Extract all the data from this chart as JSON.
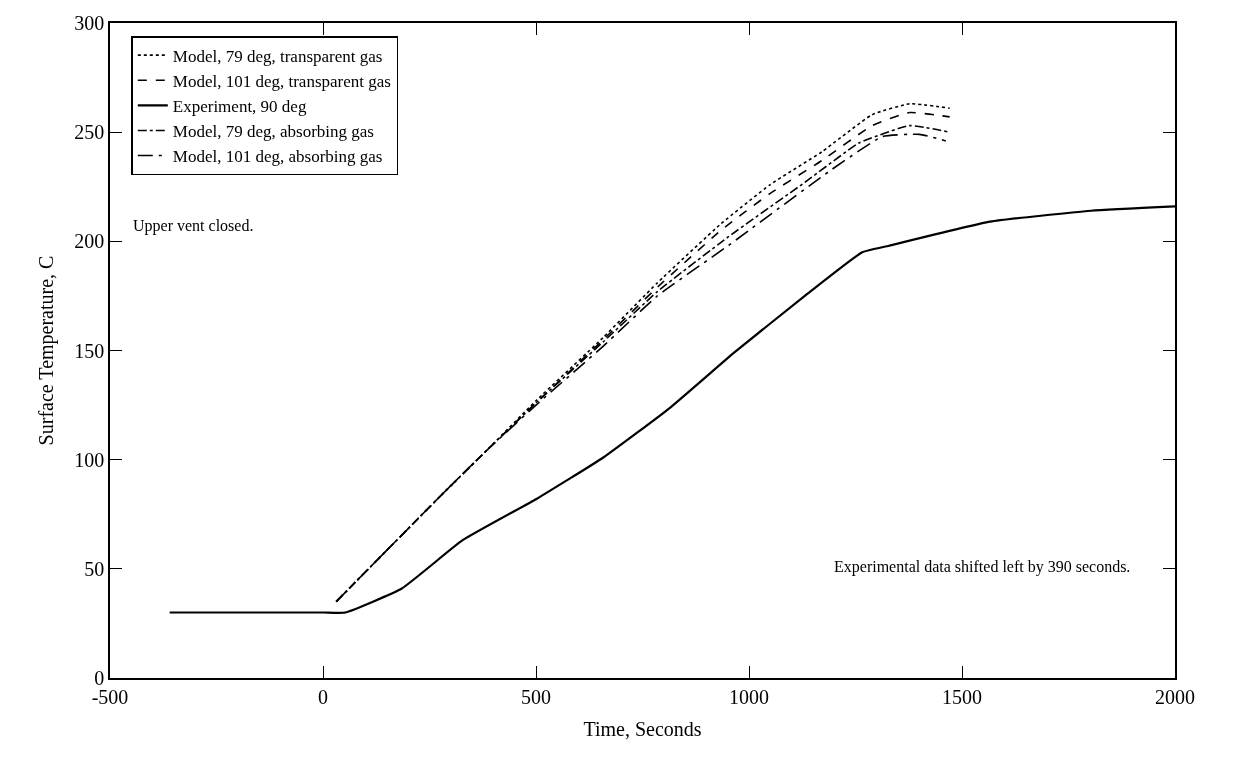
{
  "chart_data": {
    "type": "line",
    "xlabel": "Time, Seconds",
    "ylabel": "Surface Temperature, C",
    "xlim": [
      -500,
      2000
    ],
    "xticks": [
      -500,
      0,
      500,
      1000,
      1500,
      2000
    ],
    "ylim": [
      0,
      300
    ],
    "yticks": [
      0,
      50,
      100,
      150,
      200,
      250,
      300
    ],
    "legend": "top left",
    "annotations": [
      "Upper vent closed.",
      "Experimental data shifted left by 390 seconds."
    ],
    "series": [
      {
        "name": "Model, 79 deg, transparent gas",
        "color": "#000000",
        "line_style": "dotted",
        "x": [
          31,
          279,
          383,
          500,
          658,
          785,
          934,
          1050,
          1171,
          1289,
          1377,
          1471
        ],
        "values": [
          35,
          84,
          104,
          127,
          156,
          181,
          208,
          226,
          241,
          258,
          263,
          261
        ]
      },
      {
        "name": "Model, 101 deg, transparent gas",
        "color": "#000000",
        "line_style": "dashed",
        "x": [
          31,
          279,
          383,
          500,
          658,
          785,
          934,
          1050,
          1171,
          1289,
          1377,
          1471
        ],
        "values": [
          35,
          84,
          104,
          126,
          155,
          179,
          205,
          222,
          237,
          253,
          259,
          257
        ]
      },
      {
        "name": "Experiment, 90 deg",
        "color": "#000000",
        "line_style": "solid",
        "x": [
          -360,
          0,
          52,
          185,
          327,
          501,
          658,
          816,
          965,
          1131,
          1266,
          1329,
          1566,
          1803,
          2000
        ],
        "values": [
          30,
          30,
          30,
          41,
          63,
          82,
          101,
          124,
          149,
          175,
          195,
          198,
          209,
          214,
          216
        ]
      },
      {
        "name": "Model, 79 deg, absorbing gas",
        "color": "#000000",
        "line_style": "dashdot",
        "x": [
          31,
          279,
          383,
          500,
          658,
          785,
          951,
          1131,
          1258,
          1377,
          1471
        ],
        "values": [
          35,
          84,
          104,
          126,
          154,
          177,
          202,
          227,
          245,
          253,
          250
        ]
      },
      {
        "name": "Model, 101 deg, absorbing gas",
        "color": "#000000",
        "line_style": "longdashdot",
        "x": [
          31,
          279,
          383,
          500,
          658,
          785,
          951,
          1195,
          1313,
          1400,
          1462
        ],
        "values": [
          35,
          84,
          104,
          125,
          152,
          175,
          198,
          233,
          248,
          249,
          246
        ]
      }
    ]
  }
}
